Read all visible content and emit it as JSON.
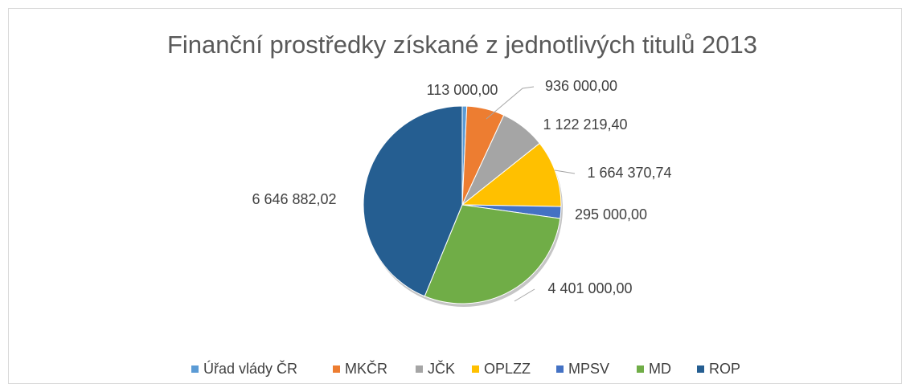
{
  "chart_data": {
    "type": "pie",
    "title": "Finanční prostředky získané z jednotlivých titulů 2013",
    "categories": [
      "Úřad vlády ČR",
      "MKČR",
      "JČK",
      "OPLZZ",
      "MPSV",
      "MD",
      "ROP"
    ],
    "values": [
      113000,
      936000,
      1122219.4,
      1664370.74,
      295000,
      4401000,
      6646882.02
    ],
    "value_labels": [
      "113 000,00",
      "936 000,00",
      "1 122 219,40",
      "1 664 370,74",
      "295 000,00",
      "4 401 000,00",
      "6 646 882,02"
    ],
    "colors": [
      "#5b9bd5",
      "#ed7d31",
      "#a5a5a5",
      "#ffc000",
      "#4472c4",
      "#70ad47",
      "#255e91"
    ],
    "legend": "bottom"
  }
}
